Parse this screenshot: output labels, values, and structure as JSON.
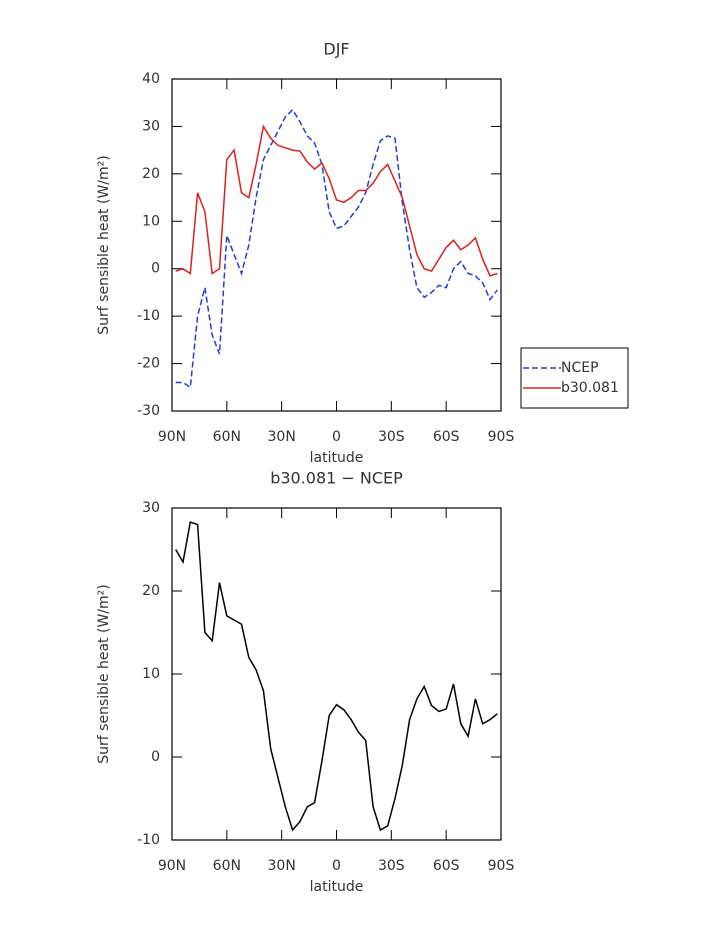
{
  "chart_data": [
    {
      "type": "line",
      "title": "DJF",
      "xlabel": "latitude",
      "ylabel": "Surf sensible heat (W/m²)",
      "x": [
        88,
        84,
        80,
        76,
        72,
        68,
        64,
        60,
        56,
        52,
        48,
        44,
        40,
        36,
        32,
        28,
        24,
        20,
        16,
        12,
        8,
        4,
        0,
        -4,
        -8,
        -12,
        -16,
        -20,
        -24,
        -28,
        -32,
        -36,
        -40,
        -44,
        -48,
        -52,
        -56,
        -60,
        -64,
        -68,
        -72,
        -76,
        -80,
        -84,
        -88
      ],
      "xlim": [
        90,
        -90
      ],
      "xticks": [
        {
          "value": 90,
          "label": "90N"
        },
        {
          "value": 60,
          "label": "60N"
        },
        {
          "value": 30,
          "label": "30N"
        },
        0,
        {
          "value": -30,
          "label": "30S"
        },
        {
          "value": -60,
          "label": "60S"
        },
        {
          "value": -90,
          "label": "90S"
        }
      ],
      "ylim": [
        -30,
        40
      ],
      "yticks": [
        -30,
        -20,
        -10,
        0,
        10,
        20,
        30,
        40
      ],
      "legend": "right",
      "series": [
        {
          "name": "NCEP",
          "color": "#1f3fd8",
          "linestyle": "dashed",
          "values": [
            -24,
            -24,
            -25,
            -10,
            -4,
            -14,
            -18,
            7,
            3,
            -1,
            5,
            15,
            23,
            26,
            29,
            32,
            33.5,
            31,
            28,
            26.5,
            22,
            12,
            8.5,
            9,
            11,
            13,
            16,
            22,
            27,
            28,
            27.5,
            14,
            4,
            -4,
            -6,
            -5,
            -3.5,
            -4,
            0,
            1.5,
            -1,
            -1.5,
            -3,
            -6.5,
            -4.5
          ]
        },
        {
          "name": "b30.081",
          "color": "#e0201b",
          "linestyle": "solid",
          "values": [
            -0.5,
            0,
            -1,
            16,
            12,
            -1,
            0,
            23,
            25,
            16,
            15,
            22,
            30,
            27.5,
            26,
            25.5,
            25,
            24.8,
            22.5,
            21,
            22.3,
            19,
            14.5,
            14,
            15,
            16.5,
            16.5,
            18,
            20.5,
            22,
            18.5,
            15,
            9,
            3,
            0,
            -0.5,
            2,
            4.5,
            6,
            4,
            5,
            6.5,
            2,
            -1.5,
            -1
          ]
        }
      ]
    },
    {
      "type": "line",
      "title": "b30.081 − NCEP",
      "xlabel": "latitude",
      "ylabel": "Surf sensible heat (W/m²)",
      "x": [
        88,
        84,
        80,
        76,
        72,
        68,
        64,
        60,
        56,
        52,
        48,
        44,
        40,
        36,
        32,
        28,
        24,
        20,
        16,
        12,
        8,
        4,
        0,
        -4,
        -8,
        -12,
        -16,
        -20,
        -24,
        -28,
        -32,
        -36,
        -40,
        -44,
        -48,
        -52,
        -56,
        -60,
        -64,
        -68,
        -72,
        -76,
        -80,
        -84,
        -88
      ],
      "xlim": [
        90,
        -90
      ],
      "xticks": [
        {
          "value": 90,
          "label": "90N"
        },
        {
          "value": 60,
          "label": "60N"
        },
        {
          "value": 30,
          "label": "30N"
        },
        0,
        {
          "value": -30,
          "label": "30S"
        },
        {
          "value": -60,
          "label": "60S"
        },
        {
          "value": -90,
          "label": "90S"
        }
      ],
      "ylim": [
        -10,
        30
      ],
      "yticks": [
        -10,
        0,
        10,
        20,
        30
      ],
      "series": [
        {
          "color": "#000000",
          "linestyle": "solid",
          "values": [
            25,
            23.5,
            28.3,
            28,
            15,
            14,
            21,
            17,
            16.5,
            16,
            12,
            10.5,
            8,
            1,
            -2.5,
            -6,
            -8.8,
            -7.8,
            -6,
            -5.5,
            -0.5,
            5,
            6.3,
            5.7,
            4.5,
            3,
            2,
            -6,
            -8.8,
            -8.3,
            -5,
            -1,
            4.5,
            7,
            8.5,
            6.2,
            5.5,
            5.8,
            8.8,
            4,
            2.5,
            7,
            4,
            4.5,
            5.2
          ]
        }
      ]
    }
  ]
}
